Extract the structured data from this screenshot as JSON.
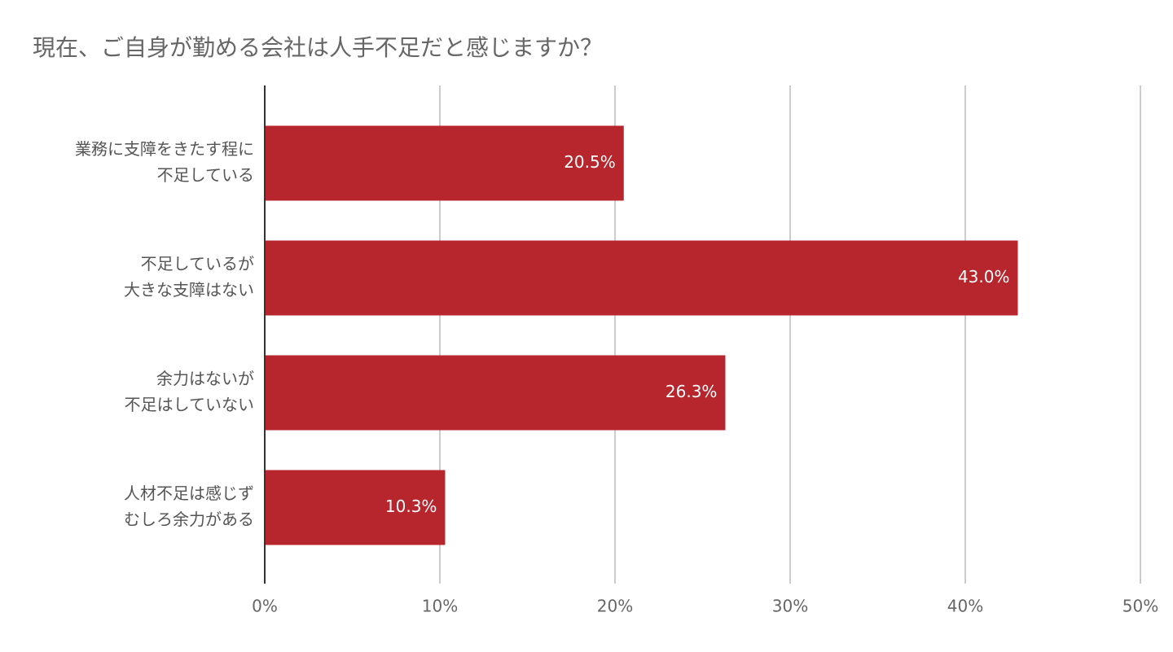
{
  "chart_data": {
    "type": "bar",
    "orientation": "horizontal",
    "title": "現在、ご自身が勤める会社は人手不足だと感じますか？",
    "categories": [
      [
        "業務に支障をきたす程に",
        "不足している"
      ],
      [
        "不足しているが",
        "大きな支障はない"
      ],
      [
        "余力はないが",
        "不足はしていない"
      ],
      [
        "人材不足は感じず",
        "むしろ余力がある"
      ]
    ],
    "values": [
      20.5,
      43.0,
      26.3,
      10.3
    ],
    "value_labels": [
      "20.5%",
      "43.0%",
      "26.3%",
      "10.3%"
    ],
    "color": "#b7252d",
    "xlim": [
      0,
      50
    ],
    "xticks": [
      {
        "value": 0,
        "label": "0%"
      },
      {
        "value": 10,
        "label": "10%"
      },
      {
        "value": 20,
        "label": "20%"
      },
      {
        "value": 30,
        "label": "30%"
      },
      {
        "value": 40,
        "label": "40%"
      },
      {
        "value": 50,
        "label": "50%"
      }
    ],
    "grid": true
  }
}
